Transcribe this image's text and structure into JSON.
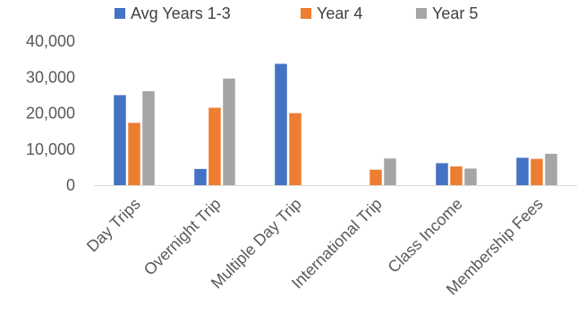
{
  "chart_data": {
    "type": "bar",
    "categories": [
      "Day Trips",
      "Overnight Trip",
      "Multiple Day Trip",
      "International Trip",
      "Class Income",
      "Membership Fees"
    ],
    "series": [
      {
        "name": "Avg Years 1-3",
        "color": "#4472C4",
        "values": [
          25000,
          4500,
          33700,
          null,
          6100,
          7600
        ]
      },
      {
        "name": "Year 4",
        "color": "#ED7D31",
        "values": [
          17300,
          21500,
          20000,
          4300,
          5200,
          7300
        ]
      },
      {
        "name": "Year 5",
        "color": "#A5A5A5",
        "values": [
          26100,
          29600,
          null,
          7400,
          4600,
          8700
        ]
      }
    ],
    "ylim": [
      0,
      40000
    ],
    "yticks": [
      0,
      10000,
      20000,
      30000,
      40000
    ],
    "ytick_labels": [
      "0",
      "10,000",
      "20,000",
      "30,000",
      "40,000"
    ],
    "legend_position": "top",
    "gridlines": false
  }
}
